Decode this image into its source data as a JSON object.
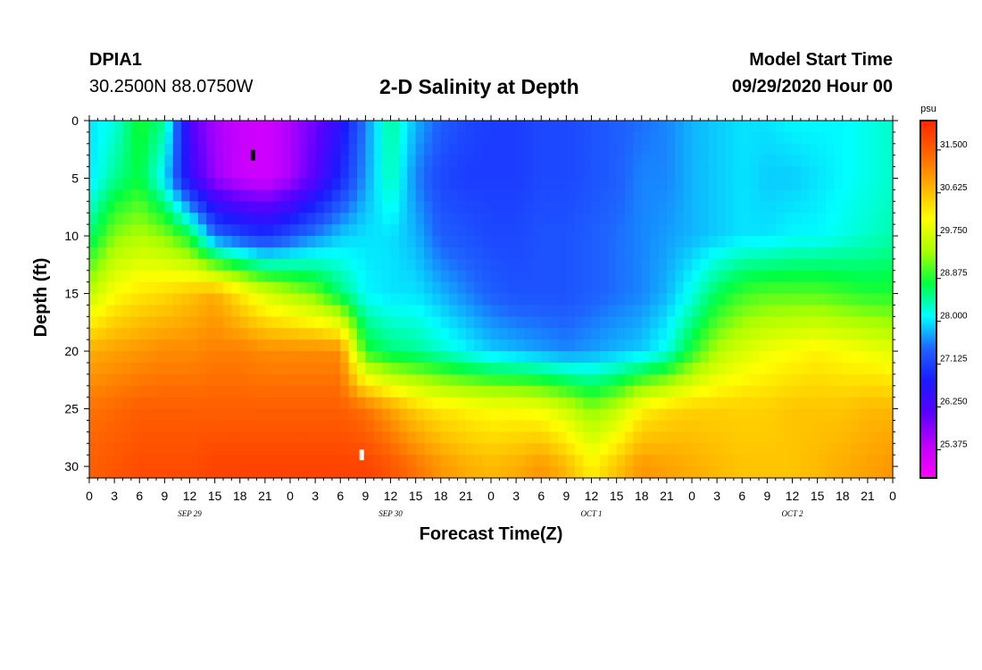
{
  "header": {
    "station": "DPIA1",
    "coordinates": "30.2500N 88.0750W",
    "title": "2-D Salinity at Depth",
    "model_start_label": "Model Start Time",
    "model_start_time": "09/29/2020 Hour 00"
  },
  "chart_data": {
    "type": "heatmap",
    "title": "2-D Salinity at Depth",
    "xlabel": "Forecast Time(Z)",
    "ylabel": "Depth (ft)",
    "x_tick_labels": [
      "0",
      "3",
      "6",
      "9",
      "12",
      "15",
      "18",
      "21",
      "0",
      "3",
      "6",
      "9",
      "12",
      "15",
      "18",
      "21",
      "0",
      "3",
      "6",
      "9",
      "12",
      "15",
      "18",
      "21",
      "0",
      "3",
      "6",
      "9",
      "12",
      "15",
      "18",
      "21",
      "0"
    ],
    "x_range_hours": [
      0,
      96
    ],
    "date_labels": [
      {
        "text": "SEP 29",
        "hour": 12
      },
      {
        "text": "SEP 30",
        "hour": 36
      },
      {
        "text": "OCT 1",
        "hour": 60
      },
      {
        "text": "OCT 2",
        "hour": 84
      }
    ],
    "y_range_ft": [
      0,
      31
    ],
    "y_reversed": true,
    "y_ticks": [
      0,
      5,
      10,
      15,
      20,
      25,
      30
    ],
    "colorbar": {
      "unit": "psu",
      "range": [
        24.8,
        32.1
      ],
      "tick_values": [
        31.5,
        30.625,
        29.75,
        28.875,
        28.0,
        27.125,
        26.25,
        25.375
      ],
      "tick_labels": [
        "31.500",
        "30.625",
        "29.750",
        "28.875",
        "28.000",
        "27.125",
        "26.250",
        "25.375"
      ],
      "colors": [
        "#ff00ff",
        "#c000ff",
        "#5a00ff",
        "#1a1aff",
        "#1e64ff",
        "#00ffff",
        "#00ff40",
        "#aaff00",
        "#ffff00",
        "#ffb000",
        "#ff6400",
        "#ff2800"
      ]
    },
    "markers": [
      {
        "hour": 19.5,
        "depth_ft": 3,
        "color": "#000000"
      },
      {
        "hour": 32.5,
        "depth_ft": 29,
        "color": "#ffffff"
      }
    ],
    "profiles": {
      "times_hours": [
        0,
        3,
        6,
        9,
        12,
        15,
        18,
        21,
        24,
        27,
        30,
        33,
        36,
        39,
        42,
        45,
        48,
        51,
        54,
        57,
        60,
        63,
        66,
        69,
        72,
        75,
        78,
        81,
        84,
        87,
        90,
        93,
        96
      ],
      "depths_ft": [
        0,
        5,
        10,
        15,
        20,
        25,
        30
      ],
      "salinity_psu": [
        [
          28.0,
          28.0,
          28.6,
          29.6,
          30.8,
          31.3,
          31.5
        ],
        [
          28.2,
          28.5,
          29.3,
          30.1,
          30.9,
          31.4,
          31.6
        ],
        [
          28.9,
          28.8,
          29.5,
          30.3,
          31.0,
          31.5,
          31.7
        ],
        [
          28.5,
          28.0,
          29.3,
          30.4,
          31.1,
          31.5,
          31.7
        ],
        [
          26.2,
          26.5,
          28.8,
          30.6,
          31.1,
          31.5,
          31.7
        ],
        [
          25.6,
          25.7,
          27.5,
          30.8,
          31.2,
          31.5,
          31.8
        ],
        [
          25.4,
          25.4,
          27.2,
          30.3,
          31.2,
          31.5,
          31.8
        ],
        [
          25.3,
          25.3,
          27.0,
          29.8,
          31.1,
          31.5,
          31.8
        ],
        [
          25.6,
          25.6,
          27.3,
          29.5,
          31.1,
          31.5,
          31.8
        ],
        [
          26.0,
          26.2,
          27.6,
          29.2,
          31.1,
          31.5,
          31.8
        ],
        [
          26.6,
          26.9,
          27.9,
          28.6,
          31.1,
          31.5,
          31.8
        ],
        [
          27.6,
          27.7,
          28.0,
          28.1,
          28.9,
          31.3,
          31.8
        ],
        [
          28.5,
          28.4,
          28.0,
          28.0,
          28.6,
          30.9,
          31.6
        ],
        [
          27.8,
          27.6,
          27.8,
          28.0,
          28.5,
          30.5,
          31.3
        ],
        [
          27.4,
          27.2,
          27.4,
          27.8,
          28.3,
          30.3,
          31.0
        ],
        [
          27.2,
          27.1,
          27.3,
          27.6,
          28.1,
          30.2,
          30.8
        ],
        [
          27.1,
          27.1,
          27.2,
          27.4,
          27.9,
          30.1,
          30.7
        ],
        [
          27.1,
          27.1,
          27.2,
          27.3,
          27.8,
          30.1,
          30.8
        ],
        [
          27.2,
          27.2,
          27.3,
          27.3,
          27.7,
          30.0,
          31.0
        ],
        [
          27.2,
          27.2,
          27.3,
          27.3,
          27.6,
          29.7,
          30.7
        ],
        [
          27.3,
          27.3,
          27.4,
          27.4,
          27.7,
          29.3,
          30.2
        ],
        [
          27.4,
          27.4,
          27.5,
          27.5,
          27.8,
          29.6,
          30.6
        ],
        [
          27.5,
          27.6,
          27.6,
          27.6,
          27.9,
          30.2,
          31.0
        ],
        [
          27.6,
          27.6,
          27.7,
          27.8,
          28.2,
          30.4,
          30.9
        ],
        [
          27.8,
          27.8,
          27.8,
          28.2,
          28.9,
          30.5,
          30.8
        ],
        [
          27.9,
          27.9,
          27.9,
          28.7,
          29.5,
          30.5,
          30.7
        ],
        [
          28.0,
          28.0,
          28.0,
          29.0,
          29.8,
          30.5,
          30.6
        ],
        [
          28.0,
          27.9,
          28.0,
          29.1,
          30.0,
          30.5,
          30.6
        ],
        [
          28.1,
          27.9,
          28.1,
          29.1,
          30.1,
          30.6,
          30.6
        ],
        [
          28.1,
          28.0,
          28.1,
          29.1,
          30.2,
          30.6,
          30.7
        ],
        [
          28.1,
          28.1,
          28.2,
          29.0,
          30.1,
          30.6,
          30.8
        ],
        [
          28.2,
          28.2,
          28.3,
          28.9,
          30.0,
          30.7,
          30.9
        ],
        [
          28.3,
          28.3,
          28.4,
          28.9,
          29.9,
          30.7,
          31.0
        ]
      ]
    }
  }
}
